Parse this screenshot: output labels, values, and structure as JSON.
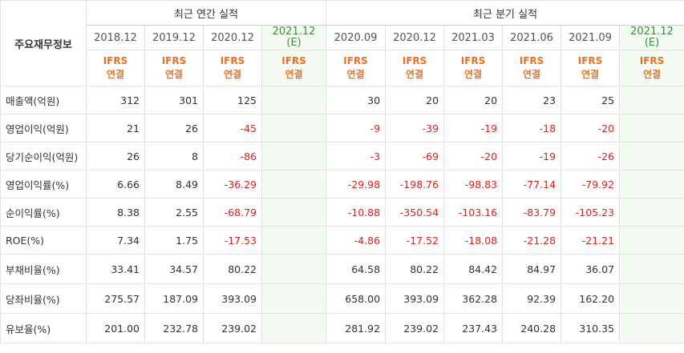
{
  "header": {
    "corner_label": "주요재무정보",
    "annual_group": "최근 연간 실적",
    "quarterly_group": "최근 분기 실적",
    "annual_periods": [
      "2018.12",
      "2019.12",
      "2020.12",
      "2021.12"
    ],
    "annual_est_sub": "(E)",
    "quarterly_periods": [
      "2020.09",
      "2020.12",
      "2021.03",
      "2021.06",
      "2021.09",
      "2021.12"
    ],
    "quarterly_est_sub": "(E)",
    "basis_top": "IFRS",
    "basis_bottom": "연결"
  },
  "rows": [
    {
      "label": "매출액(억원)",
      "annual": [
        "312",
        "301",
        "125",
        ""
      ],
      "quarterly": [
        "30",
        "20",
        "20",
        "23",
        "25",
        ""
      ]
    },
    {
      "label": "영업이익(억원)",
      "annual": [
        "21",
        "26",
        "-45",
        ""
      ],
      "quarterly": [
        "-9",
        "-39",
        "-19",
        "-18",
        "-20",
        ""
      ]
    },
    {
      "label": "당기순이익(억원)",
      "annual": [
        "26",
        "8",
        "-86",
        ""
      ],
      "quarterly": [
        "-3",
        "-69",
        "-20",
        "-19",
        "-26",
        ""
      ]
    },
    {
      "label": "영업이익률(%)",
      "annual": [
        "6.66",
        "8.49",
        "-36.29",
        ""
      ],
      "quarterly": [
        "-29.98",
        "-198.76",
        "-98.83",
        "-77.14",
        "-79.92",
        ""
      ]
    },
    {
      "label": "순이익률(%)",
      "annual": [
        "8.38",
        "2.55",
        "-68.79",
        ""
      ],
      "quarterly": [
        "-10.88",
        "-350.54",
        "-103.16",
        "-83.79",
        "-105.23",
        ""
      ]
    },
    {
      "label": "ROE(%)",
      "annual": [
        "7.34",
        "1.75",
        "-17.53",
        ""
      ],
      "quarterly": [
        "-4.86",
        "-17.52",
        "-18.08",
        "-21.28",
        "-21.21",
        ""
      ]
    },
    {
      "label": "부채비율(%)",
      "annual": [
        "33.41",
        "34.57",
        "80.22",
        ""
      ],
      "quarterly": [
        "64.58",
        "80.22",
        "84.42",
        "84.97",
        "36.07",
        ""
      ]
    },
    {
      "label": "당좌비율(%)",
      "annual": [
        "275.57",
        "187.09",
        "393.09",
        ""
      ],
      "quarterly": [
        "658.00",
        "393.09",
        "362.28",
        "92.39",
        "162.20",
        ""
      ]
    },
    {
      "label": "유보율(%)",
      "annual": [
        "201.00",
        "232.78",
        "239.02",
        ""
      ],
      "quarterly": [
        "281.92",
        "239.02",
        "237.43",
        "240.28",
        "310.35",
        ""
      ]
    }
  ]
}
